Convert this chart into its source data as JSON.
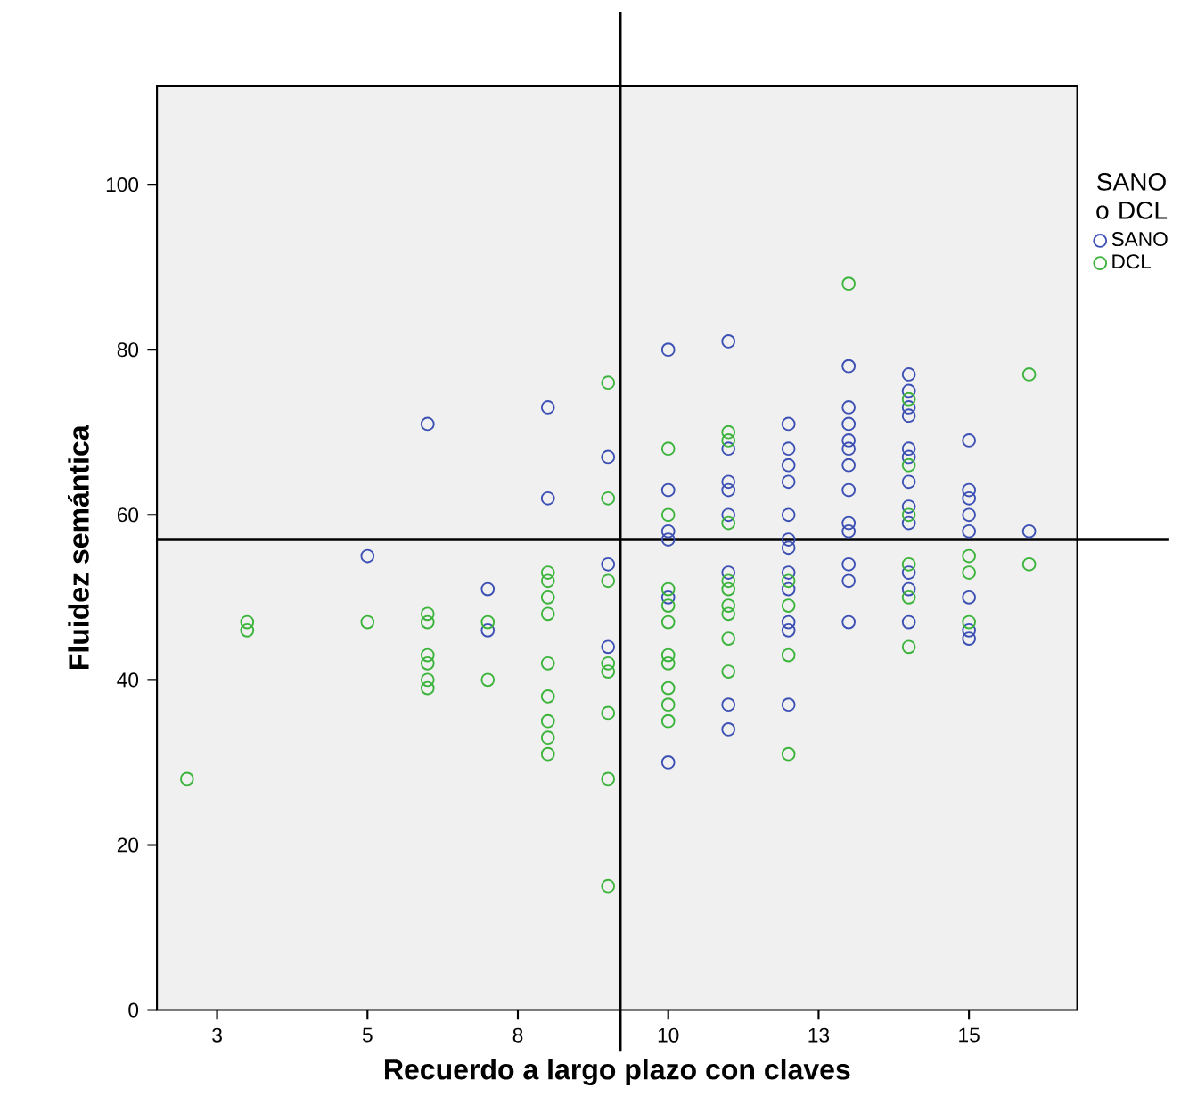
{
  "chart_data": {
    "type": "scatter",
    "xlabel": "Recuerdo a largo plazo con claves",
    "ylabel": "Fluidez semántica",
    "legend_title": "SANO o DCL",
    "legend": "right",
    "marker": "circle",
    "xlim": [
      1.5,
      16.8
    ],
    "ylim": [
      0,
      112
    ],
    "xticks": [
      {
        "value": 2.5,
        "label": "3"
      },
      {
        "value": 5,
        "label": "5"
      },
      {
        "value": 7.5,
        "label": "8"
      },
      {
        "value": 10,
        "label": "10"
      },
      {
        "value": 12.5,
        "label": "13"
      },
      {
        "value": 15,
        "label": "15"
      }
    ],
    "yticks": [
      0,
      20,
      40,
      60,
      80,
      100
    ],
    "ref_lines": [
      {
        "axis": "x",
        "value": 9.2
      },
      {
        "axis": "y",
        "value": 57
      }
    ],
    "series": [
      {
        "name": "SANO",
        "color": "#3c50b4",
        "x": [
          5,
          6,
          7,
          7,
          8,
          8,
          9,
          9,
          9,
          10,
          10,
          10,
          10,
          10,
          10,
          11,
          11,
          11,
          11,
          11,
          11,
          11,
          11,
          12,
          12,
          12,
          12,
          12,
          12,
          12,
          12,
          12,
          12,
          12,
          12,
          13,
          13,
          13,
          13,
          13,
          13,
          13,
          13,
          13,
          13,
          13,
          13,
          14,
          14,
          14,
          14,
          14,
          14,
          14,
          14,
          14,
          14,
          14,
          14,
          15,
          15,
          15,
          15,
          15,
          15,
          15,
          15,
          16
        ],
        "values": [
          55,
          71,
          51,
          46,
          73,
          62,
          67,
          54,
          44,
          80,
          63,
          58,
          57,
          50,
          30,
          81,
          68,
          64,
          63,
          60,
          53,
          37,
          34,
          71,
          68,
          66,
          64,
          60,
          57,
          56,
          53,
          51,
          47,
          46,
          37,
          78,
          73,
          71,
          69,
          68,
          66,
          63,
          59,
          58,
          54,
          52,
          47,
          77,
          75,
          73,
          72,
          68,
          67,
          64,
          61,
          59,
          53,
          51,
          47,
          69,
          63,
          62,
          60,
          58,
          50,
          46,
          45,
          58
        ]
      },
      {
        "name": "DCL",
        "color": "#3cb43c",
        "x": [
          2,
          3,
          3,
          5,
          6,
          6,
          6,
          6,
          6,
          6,
          7,
          7,
          8,
          8,
          8,
          8,
          8,
          8,
          8,
          8,
          8,
          9,
          9,
          9,
          9,
          9,
          9,
          9,
          9,
          10,
          10,
          10,
          10,
          10,
          10,
          10,
          10,
          10,
          10,
          11,
          11,
          11,
          11,
          11,
          11,
          11,
          11,
          11,
          12,
          12,
          12,
          12,
          13,
          14,
          14,
          14,
          14,
          14,
          14,
          15,
          15,
          15,
          16,
          16
        ],
        "values": [
          28,
          47,
          46,
          47,
          48,
          47,
          43,
          42,
          40,
          39,
          47,
          40,
          53,
          52,
          50,
          48,
          42,
          38,
          35,
          33,
          31,
          76,
          62,
          52,
          42,
          41,
          36,
          28,
          15,
          68,
          60,
          51,
          49,
          47,
          43,
          42,
          39,
          37,
          35,
          70,
          69,
          59,
          52,
          51,
          49,
          48,
          45,
          41,
          52,
          49,
          43,
          31,
          88,
          74,
          66,
          60,
          54,
          50,
          44,
          55,
          53,
          47,
          77,
          54
        ]
      }
    ]
  }
}
